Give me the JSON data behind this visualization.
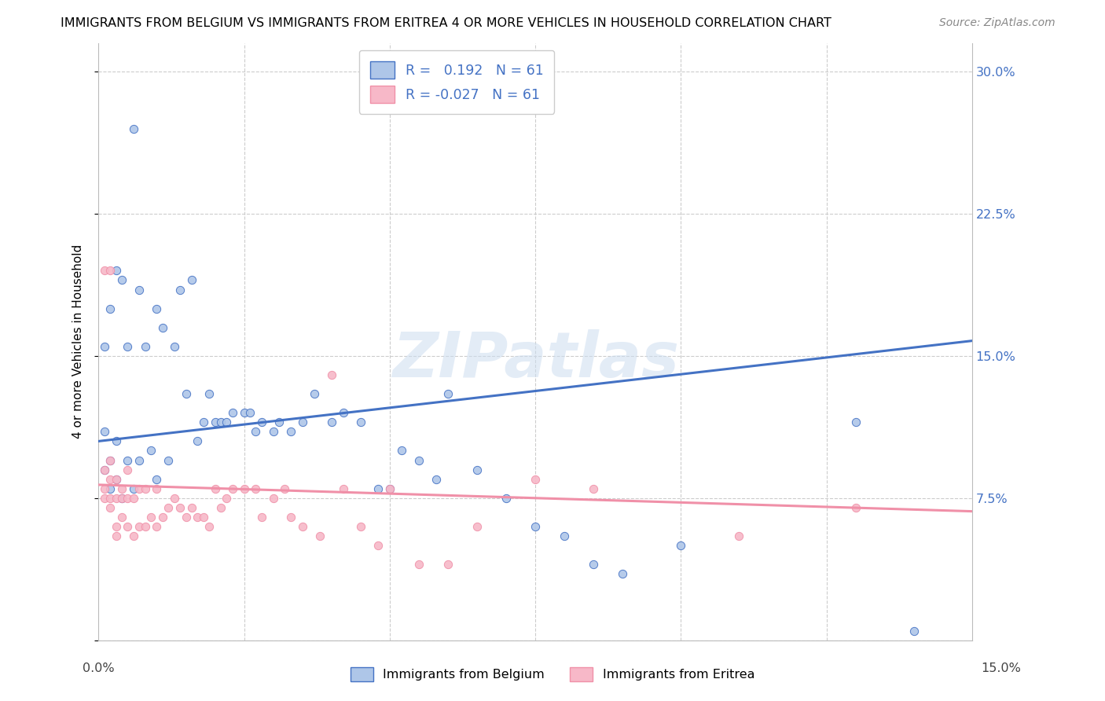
{
  "title": "IMMIGRANTS FROM BELGIUM VS IMMIGRANTS FROM ERITREA 4 OR MORE VEHICLES IN HOUSEHOLD CORRELATION CHART",
  "source": "Source: ZipAtlas.com",
  "ylabel": "4 or more Vehicles in Household",
  "xlim": [
    0.0,
    0.15
  ],
  "ylim": [
    0.0,
    0.315
  ],
  "belgium_R": 0.192,
  "eritrea_R": -0.027,
  "N": 61,
  "belgium_color": "#aec6e8",
  "eritrea_color": "#f7b8c8",
  "belgium_line_color": "#4472c4",
  "eritrea_line_color": "#f090a8",
  "watermark": "ZIPatlas",
  "bel_line_x0": 0.0,
  "bel_line_y0": 0.105,
  "bel_line_x1": 0.15,
  "bel_line_y1": 0.158,
  "eri_line_x0": 0.0,
  "eri_line_y0": 0.082,
  "eri_line_x1": 0.15,
  "eri_line_y1": 0.068,
  "belgium_scatter_x": [
    0.001,
    0.001,
    0.001,
    0.002,
    0.002,
    0.002,
    0.003,
    0.003,
    0.003,
    0.004,
    0.004,
    0.005,
    0.005,
    0.006,
    0.006,
    0.007,
    0.007,
    0.008,
    0.009,
    0.01,
    0.01,
    0.011,
    0.012,
    0.013,
    0.014,
    0.015,
    0.016,
    0.017,
    0.018,
    0.019,
    0.02,
    0.021,
    0.022,
    0.023,
    0.025,
    0.026,
    0.027,
    0.028,
    0.03,
    0.031,
    0.033,
    0.035,
    0.037,
    0.04,
    0.042,
    0.045,
    0.048,
    0.05,
    0.052,
    0.055,
    0.058,
    0.06,
    0.065,
    0.07,
    0.075,
    0.08,
    0.085,
    0.09,
    0.1,
    0.13,
    0.14
  ],
  "belgium_scatter_y": [
    0.09,
    0.11,
    0.155,
    0.08,
    0.095,
    0.175,
    0.085,
    0.105,
    0.195,
    0.075,
    0.19,
    0.095,
    0.155,
    0.08,
    0.27,
    0.095,
    0.185,
    0.155,
    0.1,
    0.085,
    0.175,
    0.165,
    0.095,
    0.155,
    0.185,
    0.13,
    0.19,
    0.105,
    0.115,
    0.13,
    0.115,
    0.115,
    0.115,
    0.12,
    0.12,
    0.12,
    0.11,
    0.115,
    0.11,
    0.115,
    0.11,
    0.115,
    0.13,
    0.115,
    0.12,
    0.115,
    0.08,
    0.08,
    0.1,
    0.095,
    0.085,
    0.13,
    0.09,
    0.075,
    0.06,
    0.055,
    0.04,
    0.035,
    0.05,
    0.115,
    0.005
  ],
  "eritrea_scatter_x": [
    0.001,
    0.001,
    0.001,
    0.001,
    0.002,
    0.002,
    0.002,
    0.002,
    0.002,
    0.003,
    0.003,
    0.003,
    0.003,
    0.004,
    0.004,
    0.004,
    0.005,
    0.005,
    0.005,
    0.006,
    0.006,
    0.007,
    0.007,
    0.008,
    0.008,
    0.009,
    0.01,
    0.01,
    0.011,
    0.012,
    0.013,
    0.014,
    0.015,
    0.016,
    0.017,
    0.018,
    0.019,
    0.02,
    0.021,
    0.022,
    0.023,
    0.025,
    0.027,
    0.028,
    0.03,
    0.032,
    0.033,
    0.035,
    0.038,
    0.04,
    0.042,
    0.045,
    0.048,
    0.05,
    0.055,
    0.06,
    0.065,
    0.075,
    0.085,
    0.11,
    0.13
  ],
  "eritrea_scatter_y": [
    0.08,
    0.09,
    0.075,
    0.195,
    0.07,
    0.085,
    0.095,
    0.075,
    0.195,
    0.06,
    0.075,
    0.085,
    0.055,
    0.065,
    0.08,
    0.075,
    0.06,
    0.075,
    0.09,
    0.055,
    0.075,
    0.06,
    0.08,
    0.06,
    0.08,
    0.065,
    0.06,
    0.08,
    0.065,
    0.07,
    0.075,
    0.07,
    0.065,
    0.07,
    0.065,
    0.065,
    0.06,
    0.08,
    0.07,
    0.075,
    0.08,
    0.08,
    0.08,
    0.065,
    0.075,
    0.08,
    0.065,
    0.06,
    0.055,
    0.14,
    0.08,
    0.06,
    0.05,
    0.08,
    0.04,
    0.04,
    0.06,
    0.085,
    0.08,
    0.055,
    0.07
  ]
}
